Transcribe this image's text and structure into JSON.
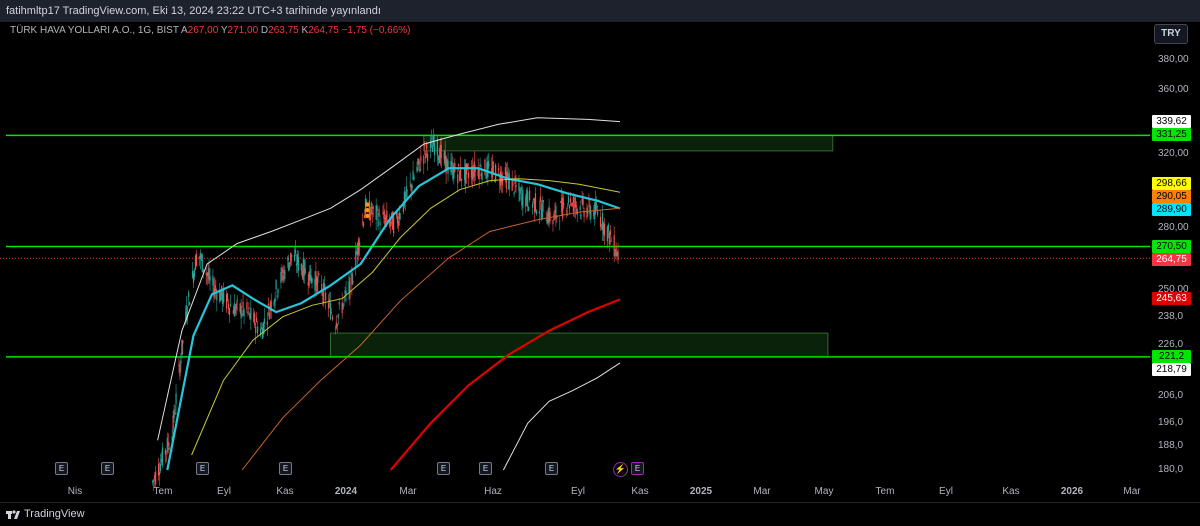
{
  "header": {
    "publish_text": "fatihmltp17 TradingView.com, Eki 13, 2024 23:22 UTC+3 tarihinde yayınlandı"
  },
  "legend": {
    "symbol": "TÜRK HAVA YOLLARI A.O., 1G, BIST",
    "open_label": "A",
    "open": "267,00",
    "high_label": "Y",
    "high": "271,00",
    "low_label": "D",
    "low": "263,75",
    "close_label": "K",
    "close": "264,75",
    "change": "−1,75 (−0,66%)"
  },
  "currency_button": "TRY",
  "footer": {
    "brand": "TradingView"
  },
  "colors": {
    "background": "#000000",
    "support_line": "#00e600",
    "ma_cyan": "#26c6da",
    "ma_yellow": "#c8c832",
    "ma_orange": "#c86428",
    "ma_red": "#e00000",
    "bollinger": "#e0e0e0",
    "candle_up": "#26a69a",
    "candle_down": "#ef5350",
    "zone_fill": "#0b2a0b"
  },
  "chart_data": {
    "type": "candlestick",
    "symbol": "TÜRK HAVA YOLLARI A.O.",
    "interval": "1G",
    "exchange": "BIST",
    "y_axis": {
      "tick_labels": [
        "380,00",
        "360,00",
        "320,00",
        "280,00",
        "250,00",
        "238,0",
        "226,0",
        "206,0",
        "196,0",
        "188,0",
        "180,0"
      ],
      "tick_values": [
        380,
        360,
        320,
        280,
        250,
        238,
        226,
        206,
        196,
        188,
        180
      ],
      "scale": "log"
    },
    "x_axis": {
      "tick_labels": [
        "Nis",
        "Tem",
        "Eyl",
        "Kas",
        "2024",
        "Mar",
        "Haz",
        "Eyl",
        "Kas",
        "2025",
        "Mar",
        "May",
        "Tem",
        "Eyl",
        "Kas",
        "2026",
        "Mar"
      ],
      "tick_dates": [
        "2023-04-01",
        "2023-07-01",
        "2023-09-01",
        "2023-11-01",
        "2024-01-01",
        "2024-03-01",
        "2024-06-01",
        "2024-09-01",
        "2024-11-01",
        "2025-01-01",
        "2025-03-01",
        "2025-05-01",
        "2025-07-01",
        "2025-09-01",
        "2025-11-01",
        "2026-01-01",
        "2026-03-01"
      ]
    },
    "horizontal_lines": [
      {
        "price": 331.25,
        "label": "331,25"
      },
      {
        "price": 270.5,
        "label": "270,50"
      },
      {
        "price": 221.2,
        "label": "221,2"
      }
    ],
    "price_labels": [
      {
        "value": 339.62,
        "label": "339,62",
        "bg": "#ffffff",
        "fg": "#000000"
      },
      {
        "value": 331.25,
        "label": "331,25",
        "bg": "#00e600",
        "fg": "#000000"
      },
      {
        "value": 298.66,
        "label": "298,66",
        "bg": "#ffff00",
        "fg": "#000000"
      },
      {
        "value": 290.05,
        "label": "290,05",
        "bg": "#ff7f00",
        "fg": "#000000"
      },
      {
        "value": 289.9,
        "label": "289,90",
        "bg": "#00e5ff",
        "fg": "#000000"
      },
      {
        "value": 270.5,
        "label": "270,50",
        "bg": "#00e600",
        "fg": "#000000"
      },
      {
        "value": 264.75,
        "label": "264,75",
        "bg": "#f23645",
        "fg": "#ffffff"
      },
      {
        "value": 245.63,
        "label": "245,63",
        "bg": "#e00000",
        "fg": "#ffffff"
      },
      {
        "value": 221.2,
        "label": "221,2",
        "bg": "#00e600",
        "fg": "#000000"
      },
      {
        "value": 218.79,
        "label": "218,79",
        "bg": "#ffffff",
        "fg": "#000000"
      }
    ],
    "zones": [
      {
        "from_date": "2024-03-25",
        "to_date": "2025-05-20",
        "high": 331.25,
        "low": 322
      },
      {
        "from_date": "2023-12-20",
        "to_date": "2025-05-15",
        "high": 231,
        "low": 221.2
      }
    ],
    "last_price": 264.75,
    "events_badges": [
      "E",
      "E",
      "E",
      "E",
      "E",
      "E",
      "E",
      "E"
    ]
  }
}
